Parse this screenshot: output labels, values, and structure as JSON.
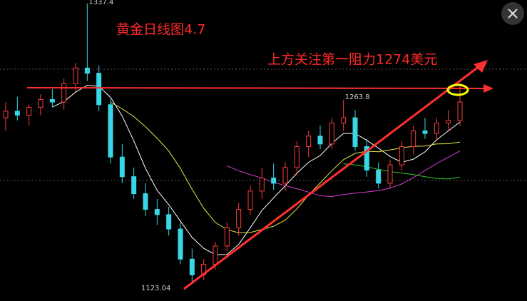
{
  "chart_data": {
    "type": "candlestick",
    "title": "黄金日线图4.7",
    "annotation": "上方关注第一阻力1274美元",
    "price_labels": [
      "1337.4",
      "1263.8",
      "1123.04"
    ],
    "ylim": [
      1110,
      1340
    ],
    "up_color": "#ff3b3b",
    "down_color": "#39d7e6",
    "open": [
      1250,
      1255,
      1252,
      1258,
      1264,
      1262,
      1276,
      1288,
      1284,
      1260,
      1220,
      1205,
      1192,
      1180,
      1176,
      1165,
      1142,
      1130,
      1138,
      1152,
      1166,
      1180,
      1194,
      1204,
      1200,
      1212,
      1228,
      1236,
      1230,
      1246,
      1250,
      1228,
      1210,
      1200,
      1214,
      1228,
      1240,
      1238,
      1246,
      1248
    ],
    "high": [
      1262,
      1266,
      1260,
      1268,
      1272,
      1280,
      1292,
      1337.4,
      1290,
      1264,
      1230,
      1212,
      1200,
      1188,
      1182,
      1170,
      1150,
      1142,
      1155,
      1170,
      1185,
      1198,
      1212,
      1215,
      1216,
      1232,
      1240,
      1244,
      1250,
      1263.8,
      1256,
      1234,
      1216,
      1218,
      1232,
      1244,
      1250,
      1250,
      1256,
      1276
    ],
    "low": [
      1240,
      1248,
      1244,
      1252,
      1258,
      1256,
      1270,
      1278,
      1255,
      1215,
      1200,
      1188,
      1175,
      1168,
      1160,
      1138,
      1123.04,
      1126,
      1134,
      1148,
      1160,
      1176,
      1188,
      1195,
      1194,
      1206,
      1220,
      1226,
      1226,
      1240,
      1225,
      1205,
      1196,
      1196,
      1210,
      1222,
      1234,
      1232,
      1240,
      1244
    ],
    "close": [
      1255,
      1252,
      1258,
      1264,
      1262,
      1276,
      1288,
      1284,
      1260,
      1220,
      1205,
      1192,
      1180,
      1176,
      1165,
      1142,
      1130,
      1138,
      1152,
      1166,
      1180,
      1194,
      1204,
      1200,
      1212,
      1228,
      1236,
      1230,
      1246,
      1250,
      1228,
      1210,
      1200,
      1214,
      1228,
      1240,
      1238,
      1246,
      1248,
      1262
    ],
    "ma_colors": [
      "#ffffff",
      "#e8e84a",
      "#d63bd6",
      "#33cc33"
    ]
  }
}
